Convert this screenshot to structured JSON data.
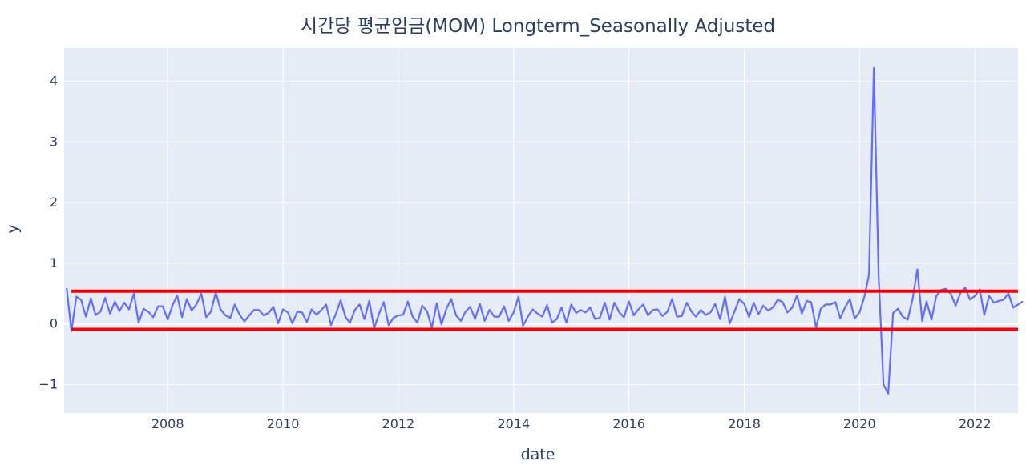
{
  "chart_data": {
    "type": "line",
    "title": "시간당 평균임금(MOM) Longterm_Seasonally Adjusted",
    "xlabel": "date",
    "ylabel": "y",
    "x_start": "2006-04",
    "x_end": "2022-09",
    "xlim": [
      "2006-03-16",
      "2022-10-01"
    ],
    "ylim": [
      -1.47,
      4.55
    ],
    "x_ticks": [
      "2008",
      "2010",
      "2012",
      "2014",
      "2016",
      "2018",
      "2020",
      "2022"
    ],
    "y_ticks": [
      -1,
      0,
      1,
      2,
      3,
      4
    ],
    "grid": true,
    "legend": "none",
    "colors": {
      "plot_bg": "#e5ecf6",
      "grid": "#ffffff",
      "line": "#636efa",
      "threshold": "#ff0000",
      "text": "#2a3f5f"
    },
    "series": [
      {
        "values": [
          0.59,
          -0.12,
          0.45,
          0.4,
          0.12,
          0.42,
          0.15,
          0.2,
          0.43,
          0.17,
          0.37,
          0.21,
          0.35,
          0.24,
          0.5,
          0.02,
          0.25,
          0.2,
          0.11,
          0.29,
          0.29,
          0.07,
          0.31,
          0.47,
          0.11,
          0.41,
          0.22,
          0.32,
          0.5,
          0.11,
          0.2,
          0.52,
          0.24,
          0.14,
          0.1,
          0.32,
          0.15,
          0.04,
          0.14,
          0.23,
          0.23,
          0.14,
          0.18,
          0.28,
          0.01,
          0.24,
          0.19,
          0.01,
          0.2,
          0.19,
          0.03,
          0.24,
          0.15,
          0.23,
          0.32,
          -0.02,
          0.16,
          0.39,
          0.11,
          0.02,
          0.23,
          0.32,
          0.08,
          0.38,
          -0.07,
          0.17,
          0.36,
          -0.02,
          0.1,
          0.14,
          0.15,
          0.37,
          0.12,
          0.02,
          0.3,
          0.21,
          -0.06,
          0.34,
          -0.01,
          0.25,
          0.41,
          0.14,
          0.05,
          0.2,
          0.28,
          0.08,
          0.33,
          0.05,
          0.23,
          0.12,
          0.12,
          0.29,
          0.05,
          0.19,
          0.45,
          -0.03,
          0.12,
          0.24,
          0.17,
          0.12,
          0.31,
          0.02,
          0.08,
          0.27,
          0.02,
          0.32,
          0.18,
          0.23,
          0.19,
          0.27,
          0.08,
          0.1,
          0.35,
          0.07,
          0.35,
          0.19,
          0.11,
          0.37,
          0.14,
          0.24,
          0.32,
          0.14,
          0.23,
          0.24,
          0.13,
          0.2,
          0.41,
          0.12,
          0.13,
          0.35,
          0.2,
          0.12,
          0.23,
          0.15,
          0.19,
          0.33,
          0.08,
          0.45,
          0.01,
          0.21,
          0.41,
          0.33,
          0.11,
          0.35,
          0.16,
          0.3,
          0.22,
          0.27,
          0.4,
          0.36,
          0.19,
          0.27,
          0.47,
          0.17,
          0.38,
          0.36,
          -0.06,
          0.25,
          0.32,
          0.32,
          0.36,
          0.09,
          0.27,
          0.41,
          0.09,
          0.19,
          0.45,
          0.81,
          4.22,
          0.81,
          -1.0,
          -1.15,
          0.18,
          0.25,
          0.12,
          0.07,
          0.4,
          0.9,
          0.05,
          0.37,
          0.07,
          0.46,
          0.56,
          0.58,
          0.5,
          0.3,
          0.51,
          0.6,
          0.4,
          0.46,
          0.57,
          0.15,
          0.46,
          0.35,
          0.38,
          0.4,
          0.5,
          0.27,
          0.32,
          0.37
        ]
      }
    ],
    "thresholds": [
      {
        "y": 0.54,
        "x_from": "2006-05"
      },
      {
        "y": -0.09,
        "x_from": "2006-05"
      }
    ]
  }
}
